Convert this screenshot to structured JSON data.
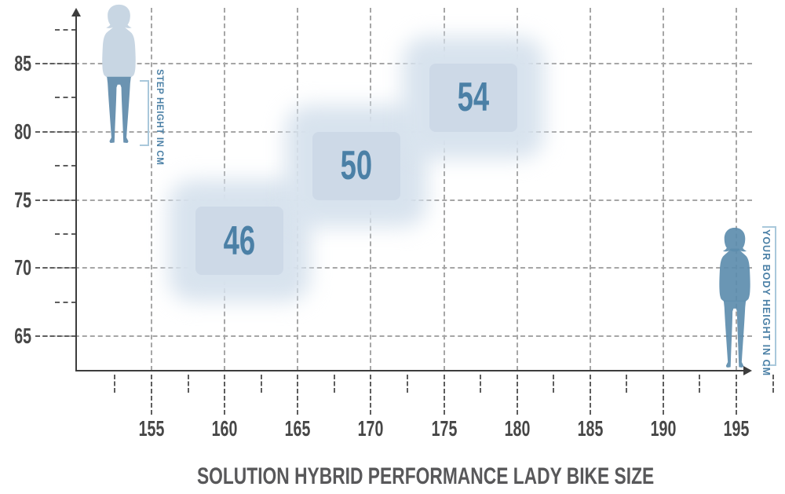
{
  "title": "SOLUTION HYBRID PERFORMANCE LADY BIKE SIZE",
  "annotations": {
    "step_height_label": "STEP HEIGHT IN CM",
    "body_height_label": "YOUR BODY HEIGHT IN CM"
  },
  "chart_data": {
    "type": "heatmap",
    "title": "SOLUTION HYBRID PERFORMANCE LADY BIKE SIZE",
    "xlabel": "YOUR BODY HEIGHT IN CM",
    "ylabel": "STEP HEIGHT IN CM",
    "x_ticks": [
      155,
      160,
      165,
      170,
      175,
      180,
      185,
      190,
      195
    ],
    "y_ticks": [
      85,
      80,
      75,
      70,
      65
    ],
    "xlim": [
      150,
      197.5
    ],
    "ylim": [
      62.5,
      88
    ],
    "grid": true,
    "boxes": [
      {
        "label": "46",
        "body_height_cm": [
          158,
          164
        ],
        "step_height_cm": [
          69.5,
          74.5
        ]
      },
      {
        "label": "50",
        "body_height_cm": [
          166,
          172
        ],
        "step_height_cm": [
          75,
          80
        ]
      },
      {
        "label": "54",
        "body_height_cm": [
          174,
          180
        ],
        "step_height_cm": [
          80,
          85
        ]
      }
    ]
  },
  "colors": {
    "accent_blue": "#4b80a6",
    "box_fill": "#cdd9e7",
    "box_halo": "#d8e3ee",
    "figure_light": "#c8d6e3",
    "figure_dark": "#5d8dae",
    "bracket_blue": "#a9c8db",
    "axis_dark": "#3d3d3d",
    "grid_gray": "#a6a6a6",
    "label_gray": "#474747",
    "title_gray": "#58585a"
  }
}
